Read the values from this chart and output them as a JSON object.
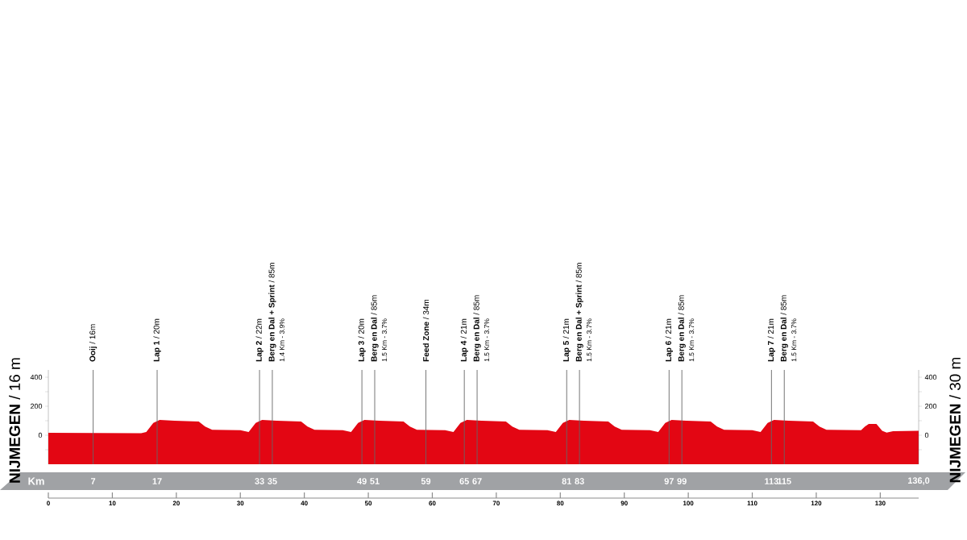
{
  "chart_data": {
    "type": "area",
    "x": [
      0,
      14.5,
      15.3,
      16.4,
      17.4,
      19.7,
      23.5,
      24.5,
      25.6,
      30,
      31.3,
      32.4,
      33.4,
      35.7,
      39.5,
      40.5,
      41.6,
      46,
      47.3,
      48.4,
      49.4,
      51.7,
      55.5,
      56.5,
      57.6,
      62,
      63.3,
      64.4,
      65.4,
      67.7,
      71.5,
      72.5,
      73.6,
      78,
      79.3,
      80.4,
      81.4,
      83.7,
      87.5,
      88.5,
      89.6,
      94,
      95.3,
      96.4,
      97.4,
      99.7,
      103.5,
      104.5,
      105.6,
      110,
      111.3,
      112.4,
      113.4,
      115.7,
      119.5,
      120.5,
      121.6,
      127,
      127.6,
      128.2,
      129.4,
      130.3,
      131,
      132,
      136
    ],
    "values": [
      16,
      14,
      22,
      85,
      105,
      100,
      95,
      60,
      37,
      35,
      22,
      85,
      105,
      100,
      95,
      60,
      37,
      35,
      22,
      85,
      105,
      100,
      95,
      60,
      37,
      35,
      22,
      85,
      105,
      100,
      95,
      60,
      37,
      35,
      22,
      85,
      105,
      100,
      95,
      60,
      37,
      35,
      22,
      85,
      105,
      100,
      95,
      60,
      37,
      35,
      22,
      85,
      105,
      100,
      95,
      60,
      37,
      35,
      60,
      78,
      78,
      30,
      18,
      28,
      30
    ],
    "color": "#e30613",
    "xlim": [
      0,
      136
    ],
    "xticks": [
      0,
      10,
      20,
      30,
      40,
      50,
      60,
      70,
      80,
      90,
      100,
      110,
      120,
      130
    ],
    "ylim": [
      -200,
      450
    ],
    "yticks": [
      {
        "value": -100,
        "label": null
      },
      0,
      {
        "value": 100,
        "label": null
      },
      200,
      {
        "value": 300,
        "label": null
      },
      400
    ],
    "y2lim": [
      -200,
      450
    ],
    "y2ticks": [
      {
        "value": -100,
        "label": null
      },
      0,
      {
        "value": 100,
        "label": null
      },
      200,
      {
        "value": 300,
        "label": null
      },
      400
    ],
    "x2lim": [
      0,
      136
    ],
    "x2label": "Km",
    "x2ticks": [
      7,
      17,
      33,
      35,
      49,
      51,
      59,
      65,
      67,
      81,
      83,
      97,
      99,
      113,
      115,
      {
        "value": 136,
        "label": "136,0"
      }
    ],
    "ref_lines": [
      {
        "axis": "x",
        "value": 7,
        "label": "**Ooij** / 16m"
      },
      {
        "axis": "x",
        "value": 17,
        "label": "**Lap 1** / 20m"
      },
      {
        "axis": "x",
        "value": 33,
        "label": "**Lap 2** / 22m"
      },
      {
        "axis": "x",
        "value": 35,
        "label": "**Berg en Dal + Sprint** / 85m"
      },
      {
        "axis": "x",
        "value": 49,
        "label": "**Lap 3** / 20m"
      },
      {
        "axis": "x",
        "value": 51,
        "label": "**Berg en Dal** / 85m"
      },
      {
        "axis": "x",
        "value": 59,
        "label": "**Feed Zone** / 34m"
      },
      {
        "axis": "x",
        "value": 65,
        "label": "**Lap 4** / 21m"
      },
      {
        "axis": "x",
        "value": 67,
        "label": "**Berg en Dal** / 85m"
      },
      {
        "axis": "x",
        "value": 81,
        "label": "**Lap 5** / 21m"
      },
      {
        "axis": "x",
        "value": 83,
        "label": "**Berg en Dal + Sprint** / 85m"
      },
      {
        "axis": "x",
        "value": 97,
        "label": "**Lap 6** / 21m"
      },
      {
        "axis": "x",
        "value": 99,
        "label": "**Berg en Dal** / 85m"
      },
      {
        "axis": "x",
        "value": 113,
        "label": "**Lap 7** / 21m"
      },
      {
        "axis": "x",
        "value": 115,
        "label": "**Berg en Dal** / 85m"
      }
    ],
    "annotations": [
      {
        "text": "**NIJMEGEN** / 16 m",
        "x": 0,
        "y": 16
      },
      {
        "text": "**NIJMEGEN** / 30 m",
        "x": 136,
        "y": 30
      },
      {
        "text": "1.4 Km - 3.9%",
        "x": 35,
        "y": 450
      },
      {
        "text": "1.5 Km - 3.7%",
        "x": 51,
        "y": 450
      },
      {
        "text": "1.5 Km - 3.7%",
        "x": 67,
        "y": 450
      },
      {
        "text": "1.5 Km - 3.7%",
        "x": 83,
        "y": 450
      },
      {
        "text": "1.5 Km - 3.7%",
        "x": 99,
        "y": 450
      },
      {
        "text": "1.5 Km - 3.7%",
        "x": 115,
        "y": 450
      }
    ]
  }
}
